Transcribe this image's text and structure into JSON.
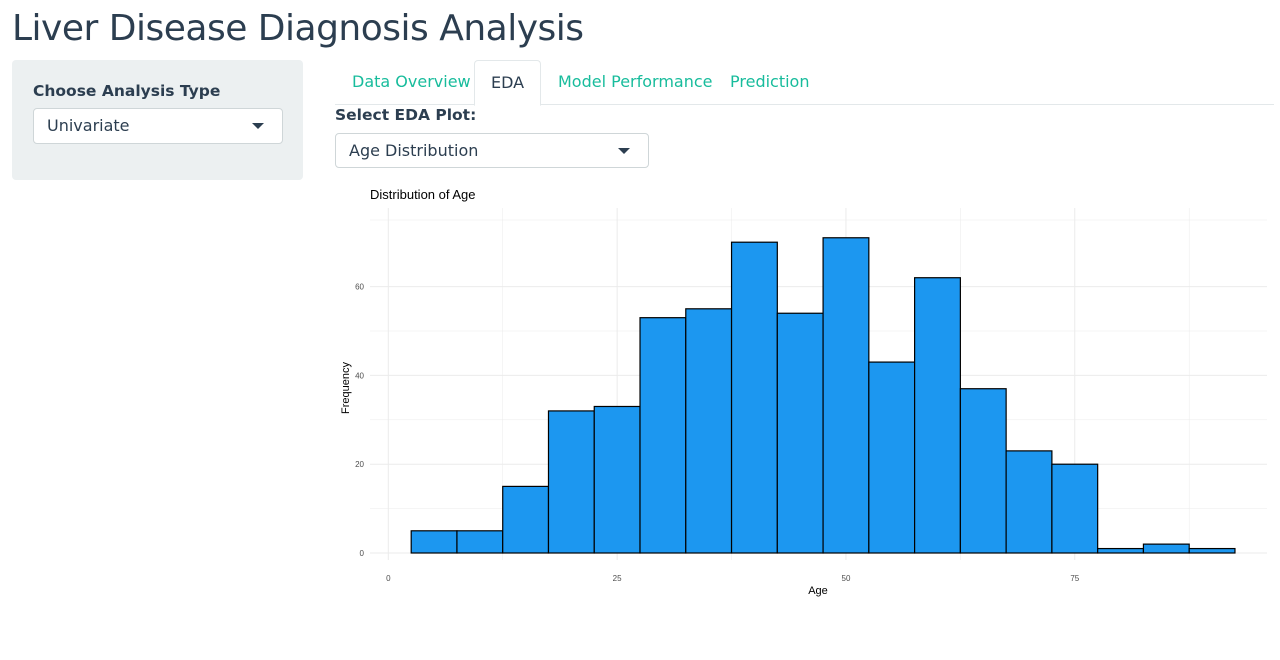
{
  "app": {
    "title": "Liver Disease Diagnosis Analysis"
  },
  "sidebar": {
    "label": "Choose Analysis Type",
    "select_value": "Univariate",
    "select_icon": "caret-down-icon"
  },
  "tabs": [
    {
      "label": "Data Overview",
      "active": false
    },
    {
      "label": "EDA",
      "active": true
    },
    {
      "label": "Model Performance",
      "active": false
    },
    {
      "label": "Prediction",
      "active": false
    }
  ],
  "eda": {
    "label": "Select EDA Plot:",
    "select_value": "Age Distribution",
    "select_icon": "caret-down-icon"
  },
  "colors": {
    "accent": "#18bc9c",
    "text": "#2c3e50",
    "sidebar_bg": "#ecf0f1",
    "bar_fill": "#1c97f0",
    "bar_stroke": "#000000",
    "grid": "#ebebeb"
  },
  "chart_data": {
    "type": "bar",
    "title": "Distribution of Age",
    "xlabel": "Age",
    "ylabel": "Frequency",
    "bin_width": 5,
    "bins": [
      {
        "x0": 2.5,
        "x1": 7.5,
        "count": 5
      },
      {
        "x0": 7.5,
        "x1": 12.5,
        "count": 5
      },
      {
        "x0": 12.5,
        "x1": 17.5,
        "count": 15
      },
      {
        "x0": 17.5,
        "x1": 22.5,
        "count": 32
      },
      {
        "x0": 22.5,
        "x1": 27.5,
        "count": 33
      },
      {
        "x0": 27.5,
        "x1": 32.5,
        "count": 53
      },
      {
        "x0": 32.5,
        "x1": 37.5,
        "count": 55
      },
      {
        "x0": 37.5,
        "x1": 42.5,
        "count": 70
      },
      {
        "x0": 42.5,
        "x1": 47.5,
        "count": 54
      },
      {
        "x0": 47.5,
        "x1": 52.5,
        "count": 71
      },
      {
        "x0": 52.5,
        "x1": 57.5,
        "count": 43
      },
      {
        "x0": 57.5,
        "x1": 62.5,
        "count": 62
      },
      {
        "x0": 62.5,
        "x1": 67.5,
        "count": 37
      },
      {
        "x0": 67.5,
        "x1": 72.5,
        "count": 23
      },
      {
        "x0": 72.5,
        "x1": 77.5,
        "count": 20
      },
      {
        "x0": 77.5,
        "x1": 82.5,
        "count": 1
      },
      {
        "x0": 82.5,
        "x1": 87.5,
        "count": 2
      },
      {
        "x0": 87.5,
        "x1": 92.5,
        "count": 1
      }
    ],
    "xlim": [
      -2,
      96
    ],
    "ylim": [
      0,
      75
    ],
    "xticks": [
      0,
      25,
      50,
      75
    ],
    "yticks": [
      0,
      20,
      40,
      60
    ],
    "grid": true,
    "legend": "none"
  }
}
